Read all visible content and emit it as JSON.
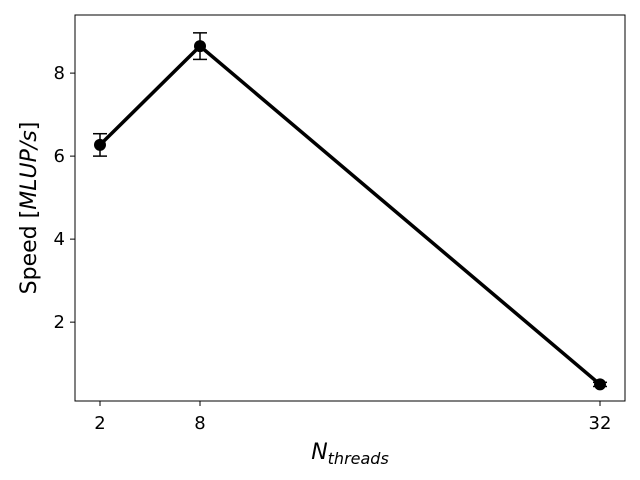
{
  "chart_data": {
    "type": "line",
    "x_tick_labels": [
      "2",
      "8",
      "32"
    ],
    "y_tick_labels": [
      "2",
      "4",
      "6",
      "8"
    ],
    "xlabel_main": "N",
    "xlabel_sub": "threads",
    "ylabel_prefix": "Speed [",
    "ylabel_unit": "MLUP/s",
    "ylabel_suffix": "]",
    "series": [
      {
        "x": [
          2,
          8,
          32
        ],
        "y": [
          6.27,
          8.65,
          0.5
        ],
        "yerr": [
          0.27,
          0.32,
          0.05
        ],
        "color": "#000000",
        "marker": "circle"
      }
    ],
    "xlim": [
      0.4,
      33.6
    ],
    "ylim": [
      0.1,
      9.4
    ],
    "x_ticks": [
      2,
      8,
      32
    ],
    "y_ticks": [
      2,
      4,
      6,
      8
    ],
    "grid": false,
    "legend": "none"
  }
}
